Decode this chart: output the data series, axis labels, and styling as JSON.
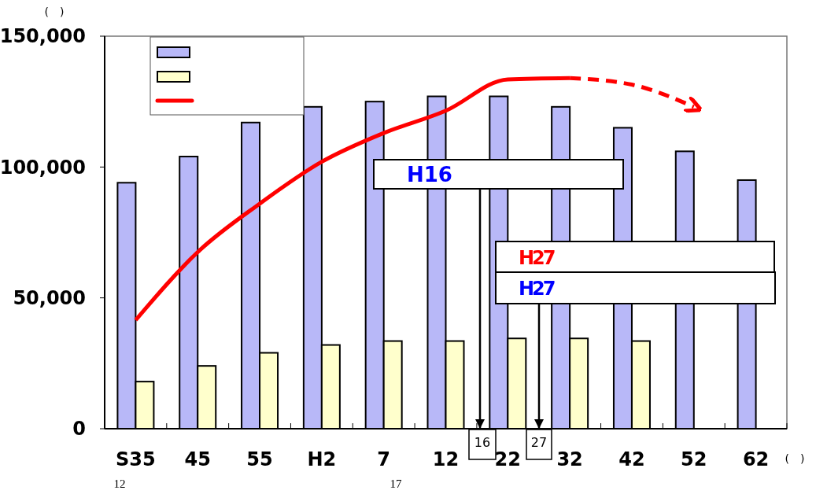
{
  "chart_data": {
    "type": "bar",
    "xlabel": "(　)",
    "ylabel": "(　)",
    "categories": [
      "S35",
      "45",
      "55",
      "H2",
      "7",
      "12",
      "22",
      "32",
      "42",
      "52",
      "62"
    ],
    "series": [
      {
        "color": "#b8b8f8",
        "values": [
          94000,
          104000,
          117000,
          123000,
          125000,
          127000,
          127000,
          123000,
          115000,
          106000,
          95000
        ]
      },
      {
        "color": "#ffffcc",
        "values": [
          18000,
          24000,
          29000,
          32000,
          33500,
          33500,
          34500,
          34500,
          33500,
          null,
          null
        ]
      },
      {
        "type": "line",
        "color": "#ff0000",
        "line_style": "solid",
        "values": [
          41500,
          67500,
          86000,
          102000,
          113000,
          121500,
          133500,
          134000,
          null,
          null,
          null
        ]
      },
      {
        "type": "line",
        "color": "#ff0000",
        "line_style": "dashed",
        "values": [
          null,
          null,
          null,
          null,
          null,
          null,
          null,
          134000,
          131500,
          123000,
          null
        ]
      }
    ],
    "ylim": [
      0,
      150000
    ],
    "yticks": [
      {
        "value": 0,
        "label": "0"
      },
      {
        "value": 50000,
        "label": "50,000"
      },
      {
        "value": 100000,
        "label": "100,000"
      },
      {
        "value": 150000,
        "label": "150,000"
      }
    ],
    "grid": false,
    "annotations": [
      "H16",
      "H27",
      "H27",
      "16",
      "27",
      "12",
      "17"
    ]
  }
}
